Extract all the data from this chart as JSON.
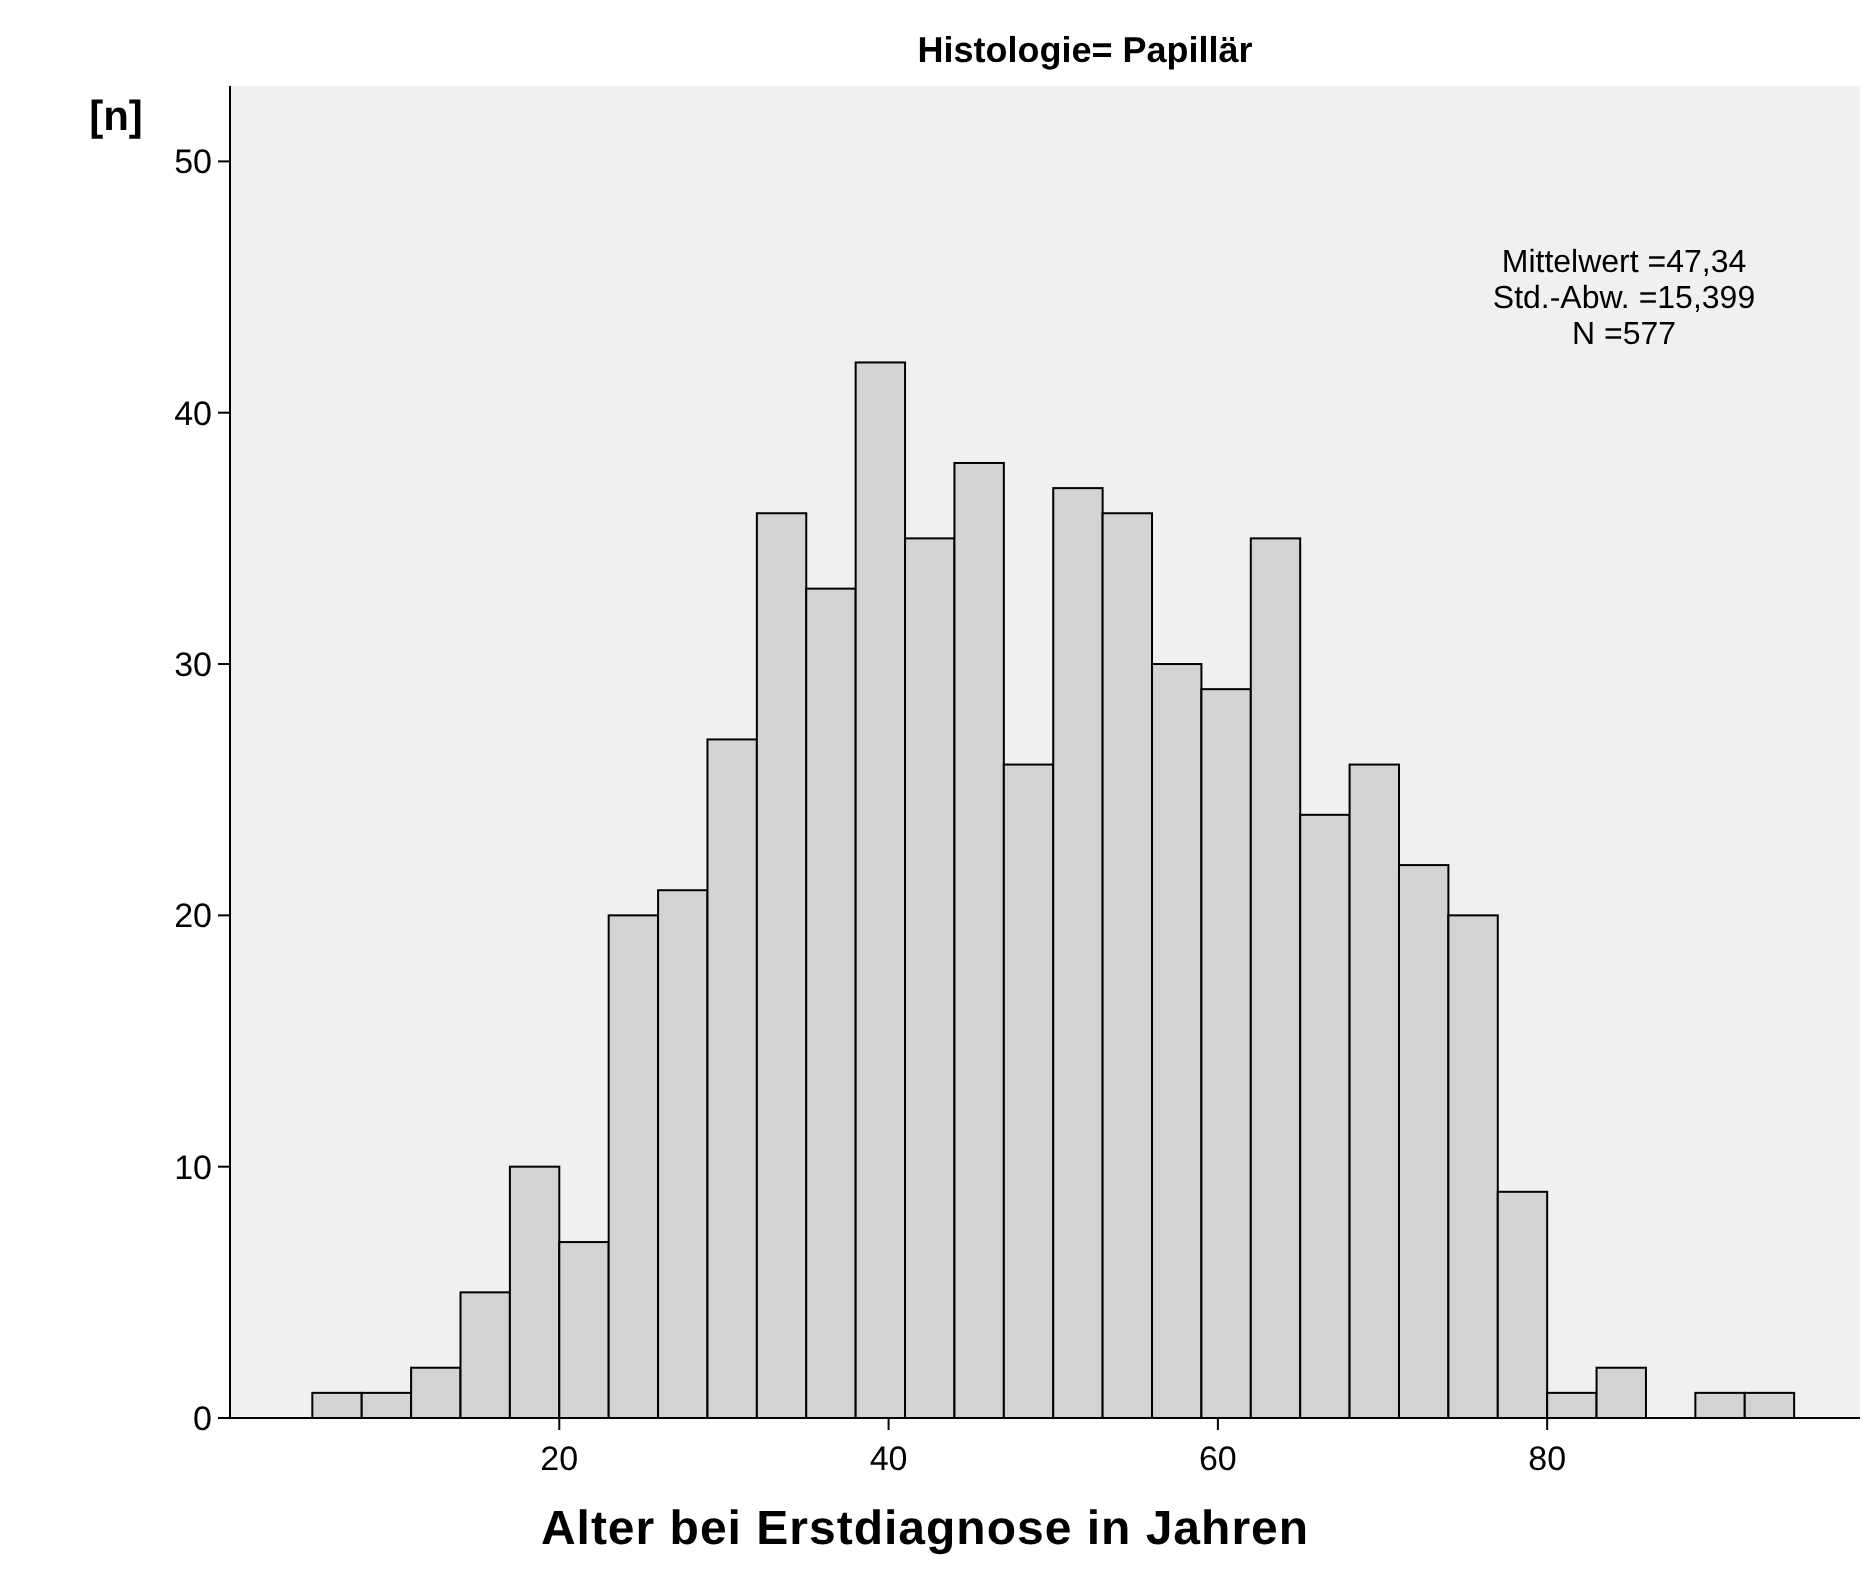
{
  "chart_data": {
    "type": "histogram",
    "title": "Histologie= Papillär",
    "xlabel": "Alter bei Erstdiagnose in Jahren",
    "ylabel": "[n]",
    "bins": [
      5,
      8,
      11,
      14,
      17,
      20,
      23,
      26,
      29,
      32,
      35,
      38,
      41,
      44,
      47,
      50,
      53,
      56,
      59,
      62,
      65,
      68,
      71,
      74,
      77,
      80,
      83,
      86,
      89,
      92,
      95
    ],
    "values": [
      1,
      1,
      2,
      5,
      10,
      7,
      20,
      21,
      27,
      36,
      33,
      42,
      35,
      38,
      26,
      37,
      36,
      30,
      29,
      35,
      24,
      26,
      22,
      20,
      9,
      1,
      2,
      0,
      1,
      1
    ],
    "color": "#d3d3d3",
    "xlim": [
      0,
      99
    ],
    "xticks": [
      20,
      40,
      60,
      80
    ],
    "ylim": [
      0,
      53
    ],
    "yticks": [
      0,
      10,
      20,
      30,
      40,
      50
    ],
    "grid": false,
    "annotations": [
      "Mittelwert =47,34",
      "Std.-Abw. =15,399",
      "N =577"
    ]
  }
}
